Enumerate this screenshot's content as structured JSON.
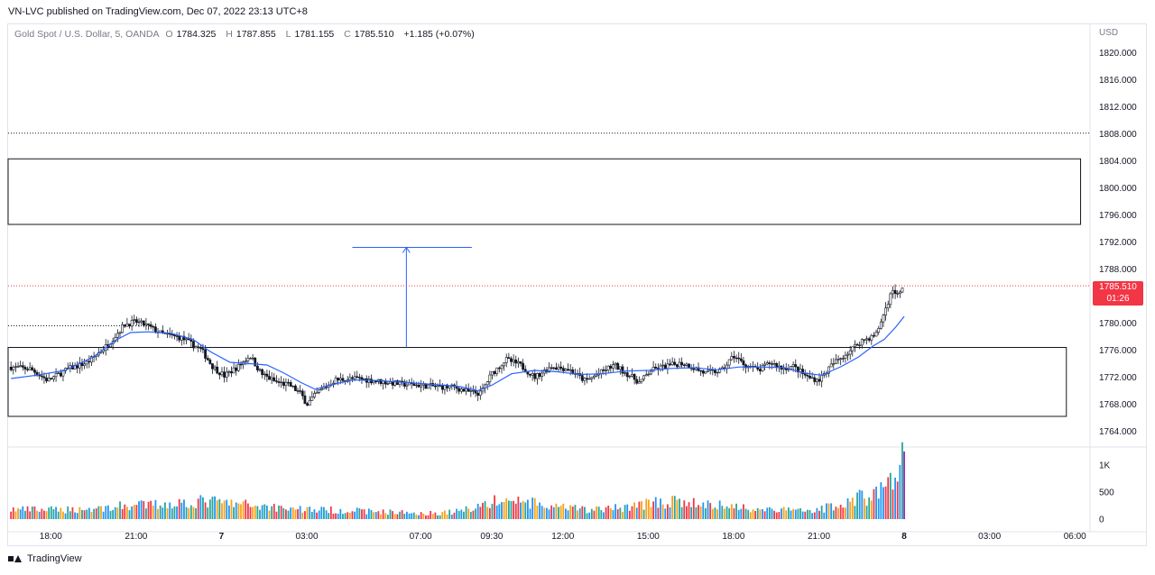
{
  "header": {
    "publisher": "VN-LVC published on TradingView.com, Dec 07, 2022 23:13 UTC+8"
  },
  "legend": {
    "symbol": "Gold Spot / U.S. Dollar, 5, OANDA",
    "o_label": "O",
    "o": "1784.325",
    "h_label": "H",
    "h": "1787.855",
    "l_label": "L",
    "l": "1781.155",
    "c_label": "C",
    "c": "1785.510",
    "change": "+1.185 (+0.07%)"
  },
  "price_badge": {
    "price": "1785.510",
    "countdown": "01:26"
  },
  "footer": {
    "brand": "TradingView"
  },
  "colors": {
    "up": "#26a69a",
    "down": "#131722",
    "ma": "#2962ff",
    "last_price": "#f23645",
    "vol_green": "#26a69a",
    "vol_orange": "#f7a21b",
    "vol_red": "#f23645",
    "vol_blue": "#2196f3",
    "vol_purple": "#9c27b0"
  },
  "chart_data": {
    "type": "candlestick",
    "currency": "USD",
    "y_ticks": [
      1820,
      1816,
      1812,
      1808,
      1804,
      1800,
      1796,
      1792,
      1788,
      1784,
      1780,
      1776,
      1772,
      1768,
      1764
    ],
    "y_tick_labels": [
      "1820.000",
      "1816.000",
      "1812.000",
      "1808.000",
      "1804.000",
      "1800.000",
      "1796.000",
      "1792.000",
      "1788.000",
      "1784.000",
      "1780.000",
      "1776.000",
      "1772.000",
      "1768.000",
      "1764.000"
    ],
    "ylim": [
      1761.8,
      1824.2
    ],
    "x_ticks": [
      "18:00",
      "21:00",
      "7",
      "03:00",
      "07:00",
      "09:30",
      "12:00",
      "15:00",
      "18:00",
      "21:00",
      "8",
      "03:00",
      "06:00"
    ],
    "x_tick_bold": [
      false,
      false,
      true,
      false,
      false,
      false,
      false,
      false,
      false,
      false,
      true,
      false,
      false
    ],
    "x_tick_hours": [
      18,
      21,
      24,
      27,
      31,
      33.5,
      36,
      39,
      42,
      45,
      48,
      51,
      54
    ],
    "x_range_hours": [
      16.5,
      54.5
    ],
    "volume_ticks": [
      "1K",
      "500",
      "0"
    ],
    "volume_tick_values": [
      1000,
      500,
      0
    ],
    "volume_max": 1300,
    "price_path": [
      [
        16.6,
        1773.5
      ],
      [
        17.3,
        1773.2
      ],
      [
        17.9,
        1771.5
      ],
      [
        18.6,
        1773.2
      ],
      [
        19.3,
        1774.2
      ],
      [
        20.0,
        1776.8
      ],
      [
        20.6,
        1779.8
      ],
      [
        21.0,
        1780.2
      ],
      [
        21.4,
        1779.6
      ],
      [
        21.9,
        1778.4
      ],
      [
        22.6,
        1777.8
      ],
      [
        23.3,
        1776.0
      ],
      [
        23.7,
        1773.5
      ],
      [
        24.1,
        1772.2
      ],
      [
        24.6,
        1773.6
      ],
      [
        25.0,
        1775.2
      ],
      [
        25.4,
        1772.5
      ],
      [
        25.9,
        1771.3
      ],
      [
        26.4,
        1770.8
      ],
      [
        26.8,
        1769.5
      ],
      [
        27.0,
        1768.0
      ],
      [
        27.4,
        1769.8
      ],
      [
        28.0,
        1771.6
      ],
      [
        28.8,
        1771.8
      ],
      [
        29.5,
        1771.4
      ],
      [
        30.3,
        1771.0
      ],
      [
        31.0,
        1770.8
      ],
      [
        31.6,
        1770.6
      ],
      [
        32.2,
        1770.5
      ],
      [
        32.7,
        1769.8
      ],
      [
        33.1,
        1769.6
      ],
      [
        33.5,
        1772.5
      ],
      [
        34.0,
        1774.6
      ],
      [
        34.5,
        1773.8
      ],
      [
        35.0,
        1772.0
      ],
      [
        35.6,
        1773.6
      ],
      [
        36.2,
        1773.2
      ],
      [
        36.8,
        1771.4
      ],
      [
        37.3,
        1772.6
      ],
      [
        37.8,
        1773.8
      ],
      [
        38.3,
        1772.4
      ],
      [
        38.7,
        1771.2
      ],
      [
        39.1,
        1773.0
      ],
      [
        39.6,
        1773.6
      ],
      [
        40.2,
        1774.1
      ],
      [
        40.6,
        1773.4
      ],
      [
        41.0,
        1772.6
      ],
      [
        41.6,
        1773.0
      ],
      [
        42.0,
        1775.2
      ],
      [
        42.4,
        1773.8
      ],
      [
        42.9,
        1773.0
      ],
      [
        43.3,
        1774.2
      ],
      [
        43.7,
        1773.3
      ],
      [
        44.1,
        1773.6
      ],
      [
        44.6,
        1772.0
      ],
      [
        45.0,
        1771.6
      ],
      [
        45.5,
        1774.0
      ],
      [
        46.0,
        1775.6
      ],
      [
        46.5,
        1777.4
      ],
      [
        47.0,
        1778.2
      ],
      [
        47.2,
        1780.4
      ],
      [
        47.4,
        1782.8
      ],
      [
        47.6,
        1785.0
      ],
      [
        47.8,
        1784.0
      ],
      [
        48.0,
        1785.5
      ]
    ],
    "ma_path": [
      [
        16.6,
        1771.8
      ],
      [
        17.5,
        1772.3
      ],
      [
        18.5,
        1773.0
      ],
      [
        19.5,
        1775.0
      ],
      [
        20.3,
        1777.5
      ],
      [
        20.8,
        1778.6
      ],
      [
        21.4,
        1778.7
      ],
      [
        22.2,
        1778.5
      ],
      [
        23.0,
        1777.6
      ],
      [
        23.6,
        1775.8
      ],
      [
        24.3,
        1774.2
      ],
      [
        25.0,
        1774.0
      ],
      [
        25.6,
        1773.8
      ],
      [
        26.2,
        1772.6
      ],
      [
        26.8,
        1771.2
      ],
      [
        27.3,
        1770.2
      ],
      [
        27.8,
        1770.8
      ],
      [
        28.6,
        1771.6
      ],
      [
        29.5,
        1771.5
      ],
      [
        30.5,
        1771.2
      ],
      [
        31.5,
        1770.9
      ],
      [
        32.4,
        1770.6
      ],
      [
        33.0,
        1770.0
      ],
      [
        33.5,
        1770.8
      ],
      [
        34.2,
        1772.5
      ],
      [
        35.0,
        1773.0
      ],
      [
        35.8,
        1772.8
      ],
      [
        36.6,
        1772.4
      ],
      [
        37.4,
        1772.5
      ],
      [
        38.2,
        1772.9
      ],
      [
        39.0,
        1773.0
      ],
      [
        39.8,
        1773.3
      ],
      [
        40.6,
        1773.4
      ],
      [
        41.4,
        1773.1
      ],
      [
        42.2,
        1773.5
      ],
      [
        43.0,
        1773.5
      ],
      [
        43.8,
        1773.4
      ],
      [
        44.5,
        1772.6
      ],
      [
        45.1,
        1772.3
      ],
      [
        45.8,
        1773.6
      ],
      [
        46.4,
        1775.0
      ],
      [
        46.9,
        1776.6
      ],
      [
        47.3,
        1777.6
      ],
      [
        47.7,
        1779.4
      ],
      [
        48.0,
        1781.0
      ]
    ],
    "volume_path": [
      [
        16.6,
        180
      ],
      [
        18.0,
        170
      ],
      [
        19.5,
        190
      ],
      [
        20.5,
        240
      ],
      [
        21.5,
        260
      ],
      [
        22.5,
        300
      ],
      [
        23.5,
        330
      ],
      [
        24.5,
        280
      ],
      [
        25.5,
        240
      ],
      [
        26.5,
        200
      ],
      [
        27.5,
        170
      ],
      [
        28.5,
        160
      ],
      [
        29.5,
        140
      ],
      [
        30.5,
        120
      ],
      [
        31.5,
        110
      ],
      [
        32.3,
        140
      ],
      [
        33.0,
        250
      ],
      [
        33.8,
        340
      ],
      [
        34.6,
        330
      ],
      [
        35.4,
        230
      ],
      [
        36.2,
        200
      ],
      [
        37.0,
        170
      ],
      [
        38.0,
        210
      ],
      [
        38.8,
        280
      ],
      [
        39.6,
        320
      ],
      [
        40.4,
        300
      ],
      [
        41.2,
        260
      ],
      [
        42.0,
        240
      ],
      [
        42.8,
        190
      ],
      [
        43.6,
        170
      ],
      [
        44.4,
        160
      ],
      [
        45.2,
        200
      ],
      [
        45.8,
        300
      ],
      [
        46.4,
        400
      ],
      [
        46.9,
        420
      ],
      [
        47.3,
        600
      ],
      [
        47.6,
        820
      ],
      [
        47.8,
        720
      ],
      [
        48.0,
        1250
      ]
    ],
    "annotations": {
      "upper_box": {
        "y_top": 1804.3,
        "y_bottom": 1794.6,
        "x_start": 16.5,
        "x_end": 54.2
      },
      "lower_box": {
        "y_top": 1776.4,
        "y_bottom": 1766.2,
        "x_start": 16.5,
        "x_end": 53.7
      },
      "dotted_line_1808": {
        "y": 1808.1
      },
      "dotted_line_1779": {
        "y": 1779.6,
        "x_start": 16.5,
        "x_end": 21.5
      },
      "projection_arrow": {
        "x": 30.5,
        "y_base": 1776.4,
        "y_top": 1791.2,
        "cap_x_start": 28.6,
        "cap_x_end": 32.8
      },
      "last_price_line": {
        "y": 1785.51
      }
    }
  }
}
